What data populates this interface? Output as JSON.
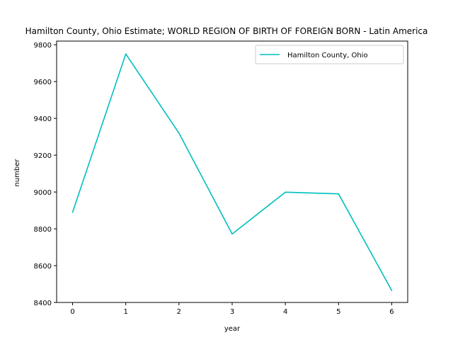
{
  "chart_data": {
    "type": "line",
    "title": "Hamilton County, Ohio Estimate; WORLD REGION OF BIRTH OF FOREIGN BORN - Latin America",
    "xlabel": "year",
    "ylabel": "number",
    "x": [
      0,
      1,
      2,
      3,
      4,
      5,
      6
    ],
    "xlim": [
      -0.3,
      6.3
    ],
    "ylim": [
      8400,
      9820
    ],
    "xticks": [
      0,
      1,
      2,
      3,
      4,
      5,
      6
    ],
    "yticks": [
      8400,
      8600,
      8800,
      9000,
      9200,
      9400,
      9600,
      9800
    ],
    "grid": false,
    "legend_position": "upper-right",
    "series": [
      {
        "name": "Hamilton County, Ohio",
        "color": "#00bfbf",
        "values": [
          8890,
          9750,
          9320,
          8772,
          8999,
          8990,
          8465
        ]
      }
    ]
  }
}
